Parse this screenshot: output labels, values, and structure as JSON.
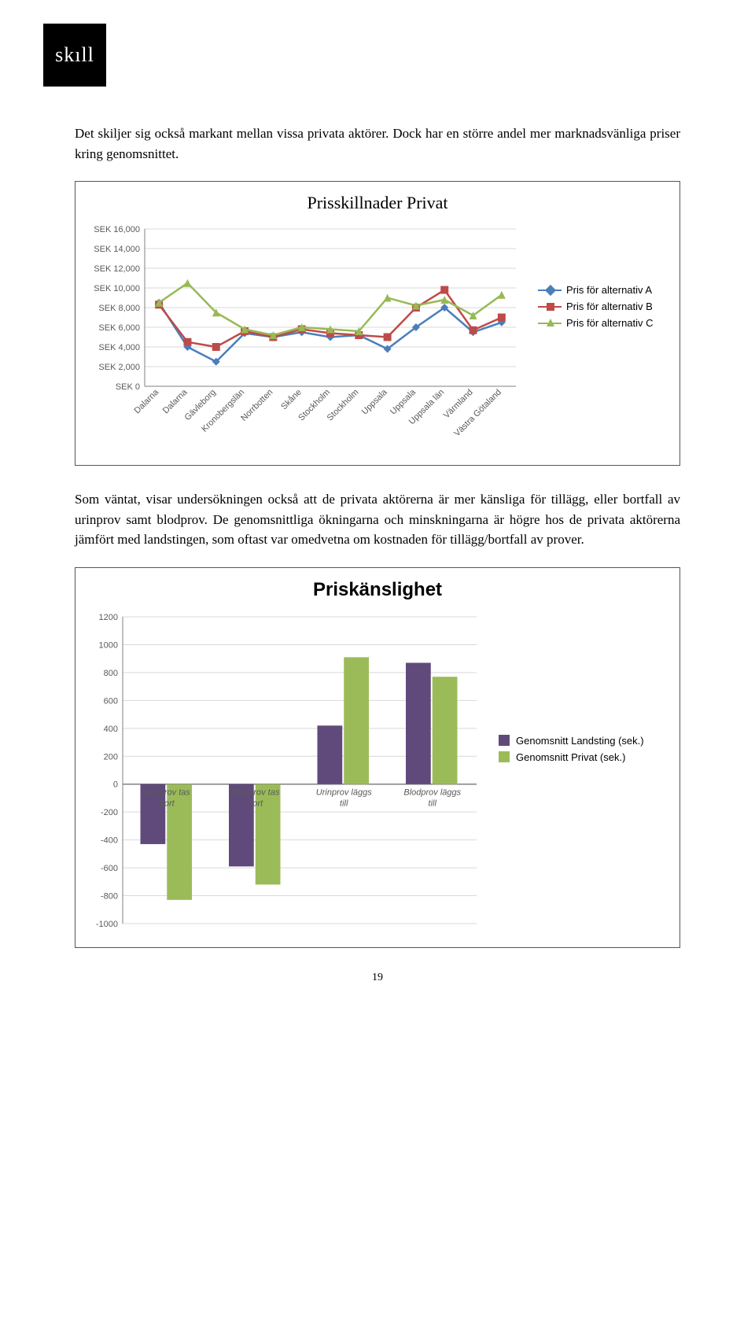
{
  "logo_text": "skıll",
  "para1": "Det skiljer sig också markant mellan vissa privata aktörer. Dock har en större andel mer marknadsvänliga priser kring genomsnittet.",
  "para2": "Som väntat, visar undersökningen också att de privata aktörerna är mer känsliga för tillägg, eller bortfall av urinprov samt blodprov. De genomsnittliga ökningarna och minskningarna är högre hos de privata aktörerna jämfört med landstingen, som oftast var omedvetna om kostnaden för tillägg/bortfall av prover.",
  "page_number": "19",
  "chart1": {
    "title": "Prisskillnader Privat",
    "type": "line-scatter",
    "categories": [
      "Dalarna",
      "Dalarna",
      "Gävleborg",
      "Kronobergslän",
      "Norrbotten",
      "Skåne",
      "Stockholm",
      "Stockholm",
      "Uppsala",
      "Uppsala",
      "Uppsala län",
      "Värmland",
      "Västra Götaland"
    ],
    "y_ticks": [
      0,
      2000,
      4000,
      6000,
      8000,
      10000,
      12000,
      14000,
      16000
    ],
    "y_tick_labels": [
      "SEK 0",
      "SEK 2,000",
      "SEK 4,000",
      "SEK 6,000",
      "SEK 8,000",
      "SEK 10,000",
      "SEK 12,000",
      "SEK 14,000",
      "SEK 16,000"
    ],
    "ylim": [
      0,
      16000
    ],
    "series": [
      {
        "name": "Pris för alternativ A",
        "color": "#4a7ebb",
        "marker": "diamond",
        "values": [
          8500,
          4000,
          2500,
          5400,
          5000,
          5500,
          5000,
          5200,
          3800,
          6000,
          8000,
          5500,
          6500
        ]
      },
      {
        "name": "Pris för alternativ B",
        "color": "#be4b48",
        "marker": "square",
        "values": [
          8300,
          4500,
          4000,
          5600,
          5000,
          5800,
          5400,
          5200,
          5000,
          8000,
          9800,
          5700,
          7000
        ]
      },
      {
        "name": "Pris för alternativ C",
        "color": "#98b954",
        "marker": "triangle",
        "values": [
          8500,
          10500,
          7500,
          5800,
          5200,
          6000,
          5800,
          5600,
          9000,
          8200,
          8800,
          7200,
          9300
        ]
      }
    ],
    "grid_color": "#d9d9d9",
    "axis_color": "#808080",
    "background": "#ffffff",
    "label_font": "Arial",
    "label_size": 11
  },
  "chart2": {
    "title": "Priskänslighet",
    "type": "bar",
    "categories": [
      "Urinprov tas bort",
      "Blodprov tas bort",
      "Urinprov läggs till",
      "Blodprov läggs till"
    ],
    "y_ticks": [
      -1000,
      -800,
      -600,
      -400,
      -200,
      0,
      200,
      400,
      600,
      800,
      1000,
      1200
    ],
    "ylim": [
      -1000,
      1200
    ],
    "series": [
      {
        "name": "Genomsnitt Landsting (sek.)",
        "color": "#604a7b",
        "values": [
          -430,
          -590,
          420,
          870
        ]
      },
      {
        "name": "Genomsnitt Privat (sek.)",
        "color": "#9bbb59",
        "values": [
          -830,
          -720,
          910,
          770
        ]
      }
    ],
    "grid_color": "#d9d9d9",
    "axis_color": "#808080",
    "background": "#ffffff",
    "bar_group_width": 0.6,
    "label_font": "Arial",
    "label_size": 11
  }
}
